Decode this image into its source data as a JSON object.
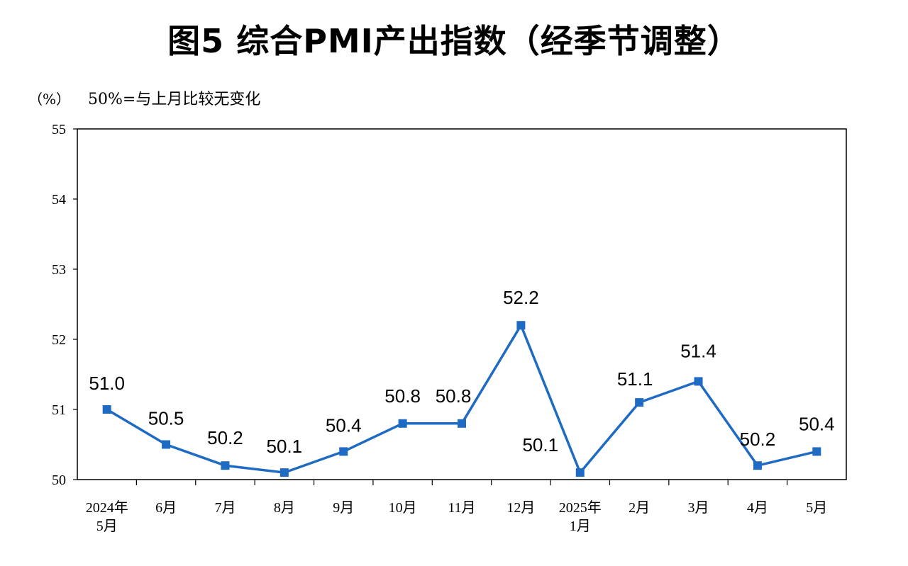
{
  "title": "图5  综合PMI产出指数（经季节调整）",
  "unit_label": "（%）",
  "note": "50%=与上月比较无变化",
  "colors": {
    "series": "#1f6bc4",
    "axis": "#000000",
    "background": "#ffffff"
  },
  "chart_data": {
    "type": "line",
    "title": "图5  综合PMI产出指数（经季节调整）",
    "xlabel": "",
    "ylabel": "（%）",
    "ylim": [
      50,
      55
    ],
    "yticks": [
      "50",
      "51",
      "52",
      "53",
      "54",
      "55"
    ],
    "grid": false,
    "categories": [
      [
        "2024年",
        "5月"
      ],
      [
        "6月"
      ],
      [
        "7月"
      ],
      [
        "8月"
      ],
      [
        "9月"
      ],
      [
        "10月"
      ],
      [
        "11月"
      ],
      [
        "12月"
      ],
      [
        "2025年",
        "1月"
      ],
      [
        "2月"
      ],
      [
        "3月"
      ],
      [
        "4月"
      ],
      [
        "5月"
      ]
    ],
    "series": [
      {
        "values": [
          51.0,
          50.5,
          50.2,
          50.1,
          50.4,
          50.8,
          50.8,
          52.2,
          50.1,
          51.1,
          51.4,
          50.2,
          50.4
        ],
        "labels": [
          "51.0",
          "50.5",
          "50.2",
          "50.1",
          "50.4",
          "50.8",
          "50.8",
          "52.2",
          "50.1",
          "51.1",
          "51.4",
          "50.2",
          "50.4"
        ]
      }
    ]
  }
}
